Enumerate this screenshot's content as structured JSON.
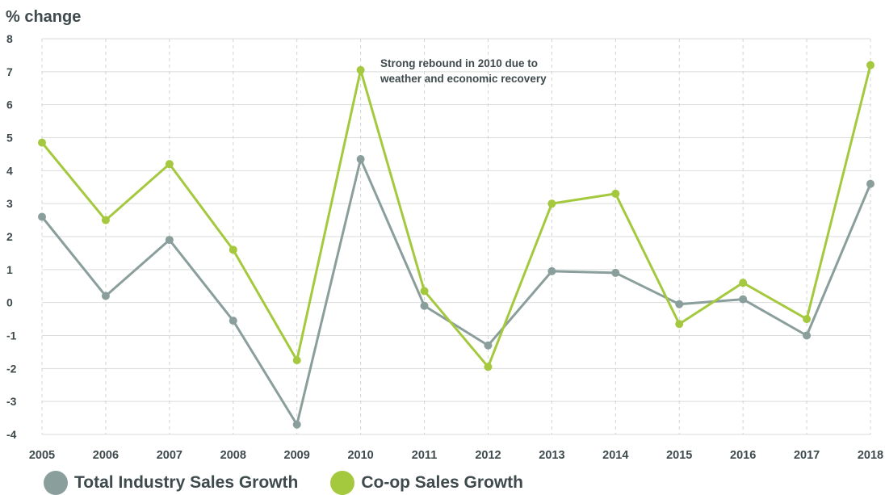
{
  "chart_data": {
    "type": "line",
    "ylabel": "% change",
    "ylim": [
      -4,
      8
    ],
    "yticks": [
      -4,
      -3,
      -2,
      -1,
      0,
      1,
      2,
      3,
      4,
      5,
      6,
      7,
      8
    ],
    "categories": [
      "2005",
      "2006",
      "2007",
      "2008",
      "2009",
      "2010",
      "2011",
      "2012",
      "2013",
      "2014",
      "2015",
      "2016",
      "2017",
      "2018"
    ],
    "grid": {
      "horizontal": "solid",
      "vertical": "dashed"
    },
    "legend_position": "bottom-left",
    "annotation": "Strong rebound in 2010 due to weather and economic recovery",
    "series": [
      {
        "name": "Total Industry Sales Growth",
        "color": "#8a9e9c",
        "values": [
          2.6,
          0.2,
          1.9,
          -0.55,
          -3.7,
          4.35,
          -0.1,
          -1.3,
          0.95,
          0.9,
          -0.05,
          0.1,
          -1.0,
          3.6
        ]
      },
      {
        "name": "Co-op Sales Growth",
        "color": "#a4c93e",
        "values": [
          4.85,
          2.5,
          4.2,
          1.6,
          -1.75,
          7.05,
          0.35,
          -1.95,
          3.0,
          3.3,
          -0.65,
          0.6,
          -0.5,
          7.2
        ]
      }
    ]
  }
}
